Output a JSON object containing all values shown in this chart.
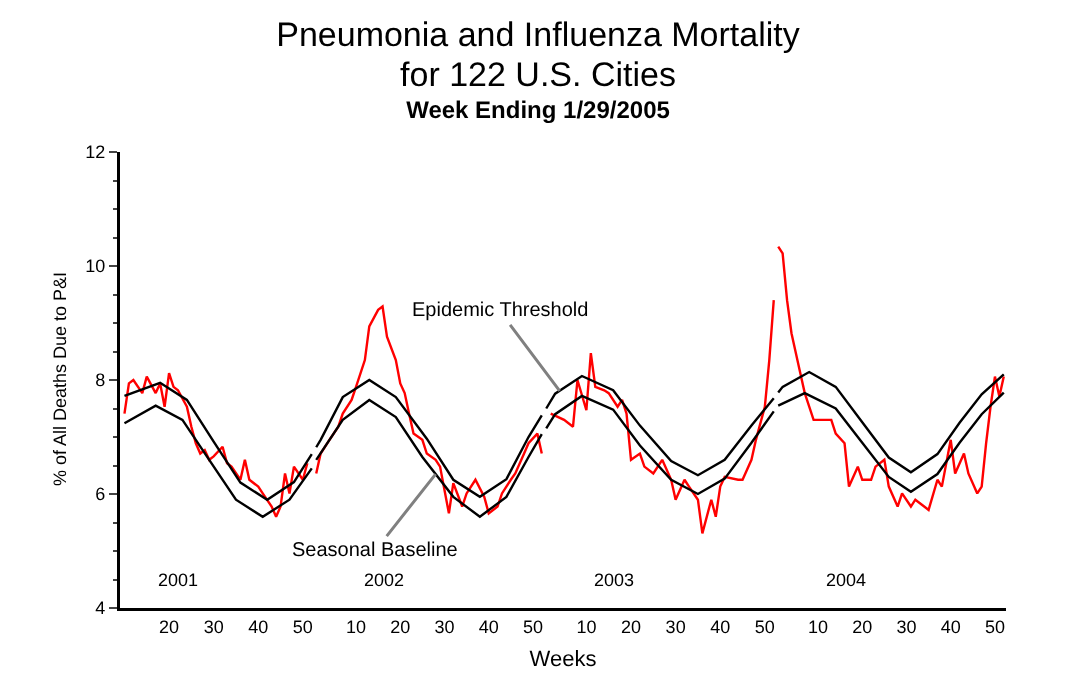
{
  "chart_data": [
    {
      "type": "other",
      "title": "Pneumonia and Influenza Mortality\nfor 122 U.S. Cities",
      "subtitle": "Week Ending 1/29/2005",
      "xlabel": "Weeks"
    },
    {
      "type": "line",
      "ylabel": "% of All Deaths Due to P&I",
      "xlim": [
        9,
        52.5
      ],
      "xticks": [
        20,
        30,
        40,
        50
      ],
      "ylim": [
        4,
        12
      ],
      "yticks": [
        4,
        6,
        8,
        10,
        12
      ],
      "line_style": "solid",
      "series": [
        {
          "color": "#ff0000",
          "x": [
            10,
            11,
            12,
            14,
            15,
            17,
            18,
            19,
            20,
            21,
            22,
            24,
            25,
            26,
            27,
            28,
            29,
            30,
            32,
            33,
            34,
            36,
            37,
            38,
            40,
            41,
            43,
            44,
            45,
            46,
            47,
            48,
            50,
            51
          ],
          "values": [
            7.41,
            7.94,
            8.0,
            7.77,
            8.06,
            7.77,
            7.94,
            7.53,
            8.12,
            7.88,
            7.82,
            7.53,
            7.18,
            6.89,
            6.71,
            6.77,
            6.6,
            6.66,
            6.83,
            6.54,
            6.48,
            6.25,
            6.6,
            6.25,
            6.13,
            6.01,
            5.78,
            5.6,
            5.78,
            6.36,
            6.01,
            6.48,
            6.25,
            6.54
          ]
        },
        {
          "color": "#000000",
          "x": [
            10,
            18,
            24,
            30,
            36,
            42,
            48,
            52
          ],
          "values": [
            7.72,
            7.95,
            7.65,
            6.92,
            6.2,
            5.9,
            6.21,
            6.7
          ]
        },
        {
          "color": "#000000",
          "x": [
            10,
            17,
            23,
            29,
            35,
            41,
            47,
            52
          ],
          "values": [
            7.24,
            7.55,
            7.3,
            6.6,
            5.9,
            5.6,
            5.9,
            6.45
          ]
        }
      ],
      "annotations": [
        "2001"
      ]
    },
    {
      "type": "line",
      "xlim": [
        0.5,
        52.5
      ],
      "xticks": [
        10,
        20,
        30,
        40,
        50
      ],
      "ylim": [
        4,
        12
      ],
      "yticks": [
        4,
        6,
        8,
        10,
        12
      ],
      "tick_labels": "x",
      "line_style": "solid",
      "series": [
        {
          "color": "#ff0000",
          "x": [
            1,
            2,
            4,
            6,
            7,
            9,
            10,
            12,
            13,
            15,
            16,
            17,
            19,
            20,
            21,
            22,
            23,
            25,
            26,
            28,
            29,
            31,
            32,
            34,
            35,
            37,
            39,
            40,
            42,
            43,
            45,
            46,
            48,
            49,
            51,
            52
          ],
          "values": [
            6.36,
            6.71,
            6.95,
            7.18,
            7.41,
            7.65,
            7.88,
            8.35,
            8.94,
            9.23,
            9.29,
            8.76,
            8.35,
            7.94,
            7.77,
            7.41,
            7.06,
            6.95,
            6.71,
            6.6,
            6.48,
            5.66,
            6.19,
            5.78,
            6.01,
            6.25,
            5.95,
            5.66,
            5.78,
            6.01,
            6.25,
            6.36,
            6.71,
            6.89,
            7.06,
            6.71
          ]
        },
        {
          "color": "#000000",
          "x": [
            1,
            2,
            7,
            13,
            19,
            26,
            32,
            38,
            44,
            49,
            52
          ],
          "values": [
            6.82,
            6.95,
            7.7,
            8.0,
            7.7,
            6.97,
            6.25,
            5.95,
            6.26,
            7.0,
            7.38
          ]
        },
        {
          "color": "#000000",
          "x": [
            1,
            7,
            13,
            19,
            25,
            32,
            38,
            44,
            49,
            52
          ],
          "values": [
            6.6,
            7.3,
            7.65,
            7.35,
            6.65,
            5.95,
            5.6,
            5.95,
            6.65,
            7.05
          ]
        }
      ],
      "annotations": [
        "2002",
        {
          "text": "Seasonal Baseline",
          "x": 28,
          "y": 6.35
        }
      ]
    },
    {
      "type": "line",
      "xlim": [
        0.5,
        52.5
      ],
      "xticks": [
        10,
        20,
        30,
        40,
        50
      ],
      "ylim": [
        4,
        12
      ],
      "yticks": [
        4,
        6,
        8,
        10,
        12
      ],
      "tick_labels": "x",
      "line_style": "solid",
      "series": [
        {
          "color": "#ff0000",
          "x": [
            2,
            5,
            7,
            8,
            10,
            11,
            12,
            14,
            15,
            17,
            18,
            19,
            20,
            22,
            23,
            25,
            27,
            29,
            30,
            32,
            33,
            35,
            36,
            38,
            39,
            40,
            41,
            44,
            45,
            47,
            48,
            50,
            51,
            52
          ],
          "values": [
            7.41,
            7.3,
            7.18,
            8.0,
            7.47,
            8.47,
            7.88,
            7.82,
            7.77,
            7.53,
            7.65,
            7.41,
            6.6,
            6.71,
            6.48,
            6.36,
            6.6,
            6.25,
            5.9,
            6.25,
            6.13,
            5.9,
            5.31,
            5.9,
            5.6,
            6.13,
            6.3,
            6.25,
            6.25,
            6.6,
            6.95,
            7.53,
            8.35,
            9.4
          ]
        },
        {
          "color": "#000000",
          "x": [
            1,
            3,
            9,
            16,
            22,
            29,
            35,
            41,
            47,
            52
          ],
          "values": [
            7.5,
            7.76,
            8.07,
            7.82,
            7.2,
            6.58,
            6.33,
            6.6,
            7.2,
            7.68
          ]
        },
        {
          "color": "#000000",
          "x": [
            1,
            3,
            9,
            16,
            22,
            29,
            35,
            41,
            47,
            52
          ],
          "values": [
            7.15,
            7.4,
            7.72,
            7.48,
            6.85,
            6.25,
            6.0,
            6.27,
            6.9,
            7.45
          ]
        }
      ],
      "annotations": [
        "2003",
        {
          "text": "Epidemic Threshold",
          "x": 4,
          "y": 7.81
        }
      ]
    },
    {
      "type": "line",
      "xlim": [
        0.5,
        52.5
      ],
      "xticks": [
        10,
        20,
        30,
        40,
        50
      ],
      "ylim": [
        4,
        12
      ],
      "yticks": [
        4,
        6,
        8,
        10,
        12
      ],
      "tick_labels": "x",
      "line_style": "solid",
      "series": [
        {
          "color": "#ff0000",
          "x": [
            1,
            2,
            3,
            4,
            6,
            7,
            9,
            10,
            13,
            14,
            16,
            17,
            19,
            20,
            22,
            23,
            25,
            26,
            28,
            29,
            31,
            32,
            34,
            35,
            37,
            38,
            40,
            41,
            43,
            44,
            46,
            47,
            48,
            49,
            50,
            51,
            52
          ],
          "values": [
            10.34,
            10.22,
            9.4,
            8.82,
            8.12,
            7.77,
            7.3,
            7.3,
            7.3,
            7.06,
            6.89,
            6.13,
            6.48,
            6.25,
            6.25,
            6.48,
            6.6,
            6.13,
            5.78,
            6.01,
            5.78,
            5.9,
            5.78,
            5.72,
            6.25,
            6.13,
            6.95,
            6.36,
            6.71,
            6.36,
            6.01,
            6.13,
            6.89,
            7.53,
            8.06,
            7.71,
            8.06
          ]
        },
        {
          "color": "#000000",
          "x": [
            1,
            2,
            8,
            14,
            20,
            26,
            31,
            37,
            42,
            47,
            52
          ],
          "values": [
            7.78,
            7.88,
            8.14,
            7.88,
            7.26,
            6.64,
            6.38,
            6.7,
            7.25,
            7.75,
            8.1
          ]
        },
        {
          "color": "#000000",
          "x": [
            1,
            7,
            14,
            20,
            26,
            31,
            37,
            42,
            47,
            52
          ],
          "values": [
            7.55,
            7.77,
            7.5,
            6.9,
            6.3,
            6.04,
            6.35,
            6.9,
            7.4,
            7.78
          ]
        }
      ],
      "annotations": [
        "2004"
      ]
    }
  ]
}
